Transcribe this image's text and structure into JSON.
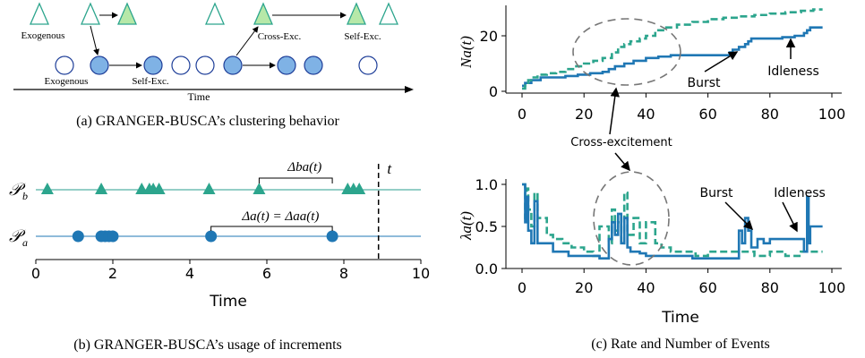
{
  "colors": {
    "blue": "#1f77b4",
    "blue_fill": "#7fb2e5",
    "green": "#2ca58d",
    "green_fill": "#b6e8a8",
    "teal_line": "#2a9d8f",
    "axis": "#000000",
    "circle_gray": "#888888"
  },
  "panel_a": {
    "caption": "(a)  GRANGER-BUSCA’s clustering behavior",
    "labels": {
      "exogenous_top": "Exogenous",
      "exogenous_bottom": "Exogenous",
      "self_exc_bottom": "Self-Exc.",
      "cross_exc": "Cross-Exc.",
      "self_exc_top": "Self-Exc.",
      "time": "Time"
    }
  },
  "panel_b": {
    "caption": "(b)  GRANGER-BUSCA’s usage of increments",
    "process_b_label": "𝒫",
    "process_b_sub": "b",
    "process_a_label": "𝒫",
    "process_a_sub": "a",
    "delta_ba": "Δba(t)",
    "delta_a": "Δa(t) = Δaa(t)",
    "t_label": "t",
    "xlabel": "Time",
    "xlim": [
      0,
      10
    ],
    "xticks": [
      0,
      2,
      4,
      6,
      8,
      10
    ],
    "events_b": [
      0.3,
      1.7,
      2.75,
      2.95,
      3.05,
      3.2,
      4.5,
      5.8,
      8.1,
      8.25,
      8.4
    ],
    "events_a": [
      1.1,
      1.7,
      1.8,
      1.9,
      2.0,
      4.55,
      7.7
    ],
    "current_t": 8.9
  },
  "chart_data": [
    {
      "type": "line",
      "ylabel": "Na(t)",
      "xlim": [
        0,
        100
      ],
      "ylim": [
        0,
        30
      ],
      "xticks": [
        0,
        20,
        40,
        60,
        80,
        100
      ],
      "yticks": [
        0,
        20
      ],
      "annotations": [
        "Burst",
        "Idleness",
        "Cross-excitement"
      ],
      "series": [
        {
          "style": "solid",
          "x": [
            0,
            1,
            3,
            6,
            10,
            14,
            18,
            22,
            26,
            28,
            30,
            33,
            36,
            40,
            44,
            48,
            52,
            56,
            60,
            64,
            67,
            68,
            70,
            72,
            73,
            74,
            76,
            80,
            84,
            88,
            91,
            92,
            93,
            97
          ],
          "y": [
            2,
            3,
            4,
            5,
            5,
            5.5,
            6,
            6.5,
            7,
            8,
            9,
            10,
            11,
            12,
            12.5,
            13,
            13,
            13,
            13,
            13,
            14,
            15,
            16,
            17,
            18,
            19,
            19,
            19,
            19.5,
            20,
            21,
            22,
            23,
            23
          ]
        },
        {
          "style": "dashed",
          "x": [
            0,
            1,
            2,
            3,
            5,
            8,
            11,
            14,
            17,
            20,
            23,
            26,
            29,
            31,
            33,
            35,
            38,
            40,
            43,
            46,
            50,
            55,
            60,
            65,
            70,
            75,
            80,
            85,
            90,
            94,
            97
          ],
          "y": [
            1,
            3,
            4,
            5,
            6,
            6.5,
            7,
            8,
            9,
            10,
            11,
            12,
            14,
            16,
            17,
            18,
            19,
            20,
            22,
            23,
            24,
            25,
            26,
            26.5,
            27,
            27.5,
            28,
            28.5,
            29,
            29.5,
            29.5
          ]
        }
      ]
    },
    {
      "type": "line",
      "ylabel": "λa(t)",
      "xlabel": "Time",
      "caption": "(c)  Rate and Number of Events",
      "xlim": [
        0,
        100
      ],
      "ylim": [
        0,
        1.0
      ],
      "xticks": [
        0,
        20,
        40,
        60,
        80,
        100
      ],
      "yticks": [
        0.0,
        0.5,
        1.0
      ],
      "annotations": [
        "Burst",
        "Idleness"
      ],
      "series": [
        {
          "style": "solid",
          "x": [
            0,
            1,
            1.5,
            2,
            3,
            4,
            5,
            10,
            15,
            20,
            25,
            28,
            29,
            30,
            31,
            32,
            33,
            34,
            35,
            38,
            40,
            45,
            50,
            55,
            60,
            65,
            70,
            71,
            72,
            73,
            74,
            76,
            78,
            80,
            85,
            90,
            91,
            92,
            92.5,
            93,
            97
          ],
          "y": [
            1.0,
            0.55,
            0.85,
            0.45,
            0.3,
            0.8,
            0.3,
            0.2,
            0.15,
            0.15,
            0.12,
            0.35,
            0.55,
            0.4,
            0.65,
            0.3,
            0.6,
            0.25,
            0.2,
            0.18,
            0.15,
            0.15,
            0.15,
            0.12,
            0.12,
            0.12,
            0.45,
            0.3,
            0.6,
            0.45,
            0.25,
            0.35,
            0.3,
            0.35,
            0.35,
            0.35,
            0.2,
            0.85,
            0.3,
            0.5,
            0.5
          ]
        },
        {
          "style": "dashed",
          "x": [
            0,
            1,
            1.5,
            2,
            3,
            4,
            5,
            8,
            10,
            13,
            16,
            20,
            23,
            25,
            28,
            29,
            30,
            31,
            32,
            33,
            34,
            36,
            38,
            40,
            43,
            45,
            48,
            52,
            56,
            60,
            65,
            70,
            75,
            80,
            85,
            90,
            93,
            97
          ],
          "y": [
            1.0,
            0.6,
            0.95,
            0.7,
            0.5,
            0.9,
            0.6,
            0.4,
            0.35,
            0.3,
            0.25,
            0.2,
            0.15,
            0.5,
            0.3,
            0.7,
            0.45,
            0.55,
            0.3,
            0.9,
            0.4,
            0.6,
            0.3,
            0.55,
            0.3,
            0.25,
            0.2,
            0.2,
            0.15,
            0.2,
            0.2,
            0.2,
            0.15,
            0.2,
            0.15,
            0.2,
            0.2,
            0.2
          ]
        }
      ]
    }
  ]
}
